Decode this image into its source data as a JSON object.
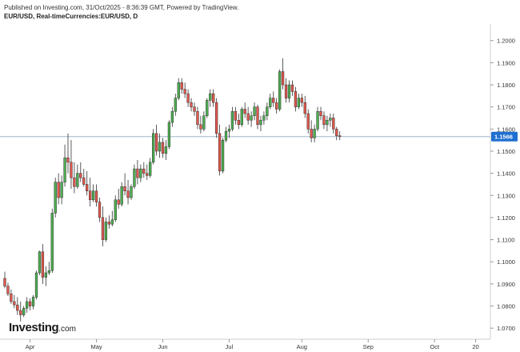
{
  "header": {
    "published": "Published on Investing.com, 31/Oct/2025 - 8:36:39 GMT, Powered by TradingView.",
    "symbol": "EUR/USD, Real-timeCurrencies:EUR/USD, D"
  },
  "logo": {
    "main": "Investing",
    "domain": ".com"
  },
  "colors": {
    "up": "#4cae4f",
    "down": "#e2574c",
    "wick": "#333333",
    "price_line": "#9fb7cc",
    "last_tag": "#1f6fd1"
  },
  "chart_data": {
    "type": "candlestick",
    "ylim": [
      1.065,
      1.2075
    ],
    "y_ticks": [
      "1.0700",
      "1.0800",
      "1.0900",
      "1.1000",
      "1.1100",
      "1.1200",
      "1.1300",
      "1.1400",
      "1.1500",
      "1.1600",
      "1.1700",
      "1.1800",
      "1.1900",
      "1.2000"
    ],
    "x_ticks": [
      {
        "label": "Apr",
        "index": 8
      },
      {
        "label": "May",
        "index": 29
      },
      {
        "label": "Jun",
        "index": 50
      },
      {
        "label": "Jul",
        "index": 71
      },
      {
        "label": "Aug",
        "index": 94
      },
      {
        "label": "Sep",
        "index": 115
      },
      {
        "label": "Oct",
        "index": 136
      },
      {
        "label": "20",
        "index": 149
      }
    ],
    "last_price": "1.1566",
    "last_value": 1.1566,
    "candles": [
      [
        1.0925,
        1.0955,
        1.088,
        1.089
      ],
      [
        1.089,
        1.0905,
        1.0845,
        1.0855
      ],
      [
        1.0855,
        1.0875,
        1.081,
        1.082
      ],
      [
        1.082,
        1.085,
        1.079,
        1.0805
      ],
      [
        1.0805,
        1.084,
        1.076,
        1.078
      ],
      [
        1.078,
        1.082,
        1.073,
        1.076
      ],
      [
        1.076,
        1.08,
        1.075,
        1.079
      ],
      [
        1.079,
        1.084,
        1.077,
        1.082
      ],
      [
        1.082,
        1.0835,
        1.078,
        1.08
      ],
      [
        1.08,
        1.085,
        1.0785,
        1.084
      ],
      [
        1.084,
        1.096,
        1.083,
        1.095
      ],
      [
        1.095,
        1.105,
        1.094,
        1.1045
      ],
      [
        1.1045,
        1.108,
        1.09,
        1.093
      ],
      [
        1.093,
        1.098,
        1.089,
        1.095
      ],
      [
        1.095,
        1.1,
        1.094,
        1.096
      ],
      [
        1.096,
        1.124,
        1.095,
        1.122
      ],
      [
        1.122,
        1.138,
        1.12,
        1.136
      ],
      [
        1.136,
        1.14,
        1.126,
        1.129
      ],
      [
        1.129,
        1.139,
        1.126,
        1.136
      ],
      [
        1.136,
        1.153,
        1.134,
        1.147
      ],
      [
        1.147,
        1.158,
        1.14,
        1.145
      ],
      [
        1.145,
        1.155,
        1.133,
        1.138
      ],
      [
        1.138,
        1.145,
        1.131,
        1.134
      ],
      [
        1.134,
        1.144,
        1.133,
        1.14
      ],
      [
        1.14,
        1.145,
        1.136,
        1.138
      ],
      [
        1.138,
        1.142,
        1.134,
        1.135
      ],
      [
        1.135,
        1.141,
        1.13,
        1.132
      ],
      [
        1.132,
        1.138,
        1.125,
        1.128
      ],
      [
        1.128,
        1.135,
        1.127,
        1.132
      ],
      [
        1.132,
        1.135,
        1.125,
        1.127
      ],
      [
        1.127,
        1.129,
        1.118,
        1.12
      ],
      [
        1.12,
        1.125,
        1.107,
        1.11
      ],
      [
        1.11,
        1.12,
        1.109,
        1.118
      ],
      [
        1.118,
        1.121,
        1.115,
        1.117
      ],
      [
        1.117,
        1.123,
        1.116,
        1.119
      ],
      [
        1.119,
        1.13,
        1.118,
        1.128
      ],
      [
        1.128,
        1.133,
        1.124,
        1.126
      ],
      [
        1.126,
        1.136,
        1.125,
        1.134
      ],
      [
        1.134,
        1.14,
        1.13,
        1.132
      ],
      [
        1.132,
        1.137,
        1.126,
        1.129
      ],
      [
        1.129,
        1.135,
        1.128,
        1.134
      ],
      [
        1.134,
        1.144,
        1.133,
        1.142
      ],
      [
        1.142,
        1.146,
        1.135,
        1.138
      ],
      [
        1.138,
        1.144,
        1.136,
        1.142
      ],
      [
        1.142,
        1.145,
        1.138,
        1.14
      ],
      [
        1.14,
        1.144,
        1.137,
        1.139
      ],
      [
        1.139,
        1.147,
        1.138,
        1.145
      ],
      [
        1.145,
        1.16,
        1.144,
        1.158
      ],
      [
        1.158,
        1.162,
        1.148,
        1.15
      ],
      [
        1.15,
        1.158,
        1.147,
        1.154
      ],
      [
        1.154,
        1.156,
        1.147,
        1.149
      ],
      [
        1.149,
        1.155,
        1.146,
        1.152
      ],
      [
        1.152,
        1.164,
        1.151,
        1.163
      ],
      [
        1.163,
        1.17,
        1.161,
        1.168
      ],
      [
        1.168,
        1.176,
        1.166,
        1.174
      ],
      [
        1.174,
        1.183,
        1.173,
        1.181
      ],
      [
        1.181,
        1.183,
        1.176,
        1.178
      ],
      [
        1.178,
        1.181,
        1.174,
        1.176
      ],
      [
        1.176,
        1.178,
        1.17,
        1.172
      ],
      [
        1.172,
        1.174,
        1.168,
        1.17
      ],
      [
        1.17,
        1.172,
        1.166,
        1.168
      ],
      [
        1.168,
        1.17,
        1.16,
        1.162
      ],
      [
        1.162,
        1.166,
        1.158,
        1.16
      ],
      [
        1.16,
        1.168,
        1.159,
        1.166
      ],
      [
        1.166,
        1.174,
        1.165,
        1.173
      ],
      [
        1.173,
        1.178,
        1.17,
        1.176
      ],
      [
        1.176,
        1.178,
        1.17,
        1.172
      ],
      [
        1.172,
        1.174,
        1.156,
        1.158
      ],
      [
        1.158,
        1.162,
        1.139,
        1.141
      ],
      [
        1.141,
        1.156,
        1.14,
        1.155
      ],
      [
        1.155,
        1.161,
        1.154,
        1.159
      ],
      [
        1.159,
        1.162,
        1.156,
        1.16
      ],
      [
        1.16,
        1.17,
        1.159,
        1.168
      ],
      [
        1.168,
        1.17,
        1.162,
        1.164
      ],
      [
        1.164,
        1.167,
        1.16,
        1.162
      ],
      [
        1.162,
        1.17,
        1.161,
        1.169
      ],
      [
        1.169,
        1.172,
        1.165,
        1.167
      ],
      [
        1.167,
        1.17,
        1.162,
        1.164
      ],
      [
        1.164,
        1.168,
        1.161,
        1.166
      ],
      [
        1.166,
        1.172,
        1.164,
        1.17
      ],
      [
        1.17,
        1.171,
        1.16,
        1.162
      ],
      [
        1.162,
        1.166,
        1.159,
        1.164
      ],
      [
        1.164,
        1.168,
        1.162,
        1.166
      ],
      [
        1.166,
        1.172,
        1.164,
        1.17
      ],
      [
        1.17,
        1.176,
        1.169,
        1.174
      ],
      [
        1.174,
        1.177,
        1.17,
        1.172
      ],
      [
        1.172,
        1.174,
        1.167,
        1.169
      ],
      [
        1.169,
        1.187,
        1.168,
        1.186
      ],
      [
        1.186,
        1.192,
        1.178,
        1.18
      ],
      [
        1.18,
        1.183,
        1.172,
        1.174
      ],
      [
        1.174,
        1.182,
        1.172,
        1.18
      ],
      [
        1.18,
        1.182,
        1.175,
        1.177
      ],
      [
        1.177,
        1.179,
        1.168,
        1.17
      ],
      [
        1.17,
        1.176,
        1.169,
        1.174
      ],
      [
        1.174,
        1.176,
        1.17,
        1.172
      ],
      [
        1.172,
        1.175,
        1.165,
        1.167
      ],
      [
        1.167,
        1.169,
        1.158,
        1.16
      ],
      [
        1.16,
        1.164,
        1.154,
        1.156
      ],
      [
        1.156,
        1.162,
        1.154,
        1.16
      ],
      [
        1.16,
        1.17,
        1.159,
        1.168
      ],
      [
        1.168,
        1.17,
        1.164,
        1.166
      ],
      [
        1.166,
        1.168,
        1.16,
        1.162
      ],
      [
        1.162,
        1.166,
        1.159,
        1.164
      ],
      [
        1.164,
        1.167,
        1.161,
        1.165
      ],
      [
        1.165,
        1.167,
        1.158,
        1.16
      ],
      [
        1.16,
        1.161,
        1.155,
        1.157
      ],
      [
        1.157,
        1.159,
        1.155,
        1.1566
      ]
    ]
  }
}
